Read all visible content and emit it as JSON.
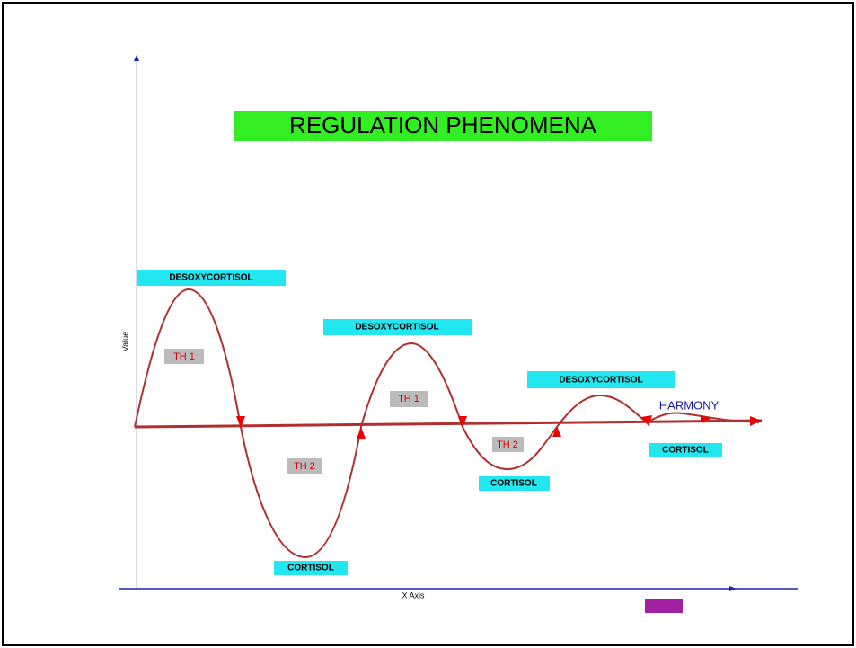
{
  "title": "REGULATION PHENOMENA",
  "peaks": [
    "DESOXYCORTISOL",
    "DESOXYCORTISOL",
    "DESOXYCORTISOL"
  ],
  "troughs": [
    "CORTISOL",
    "CORTISOL",
    "CORTISOL"
  ],
  "phases": [
    "TH 1",
    "TH 2",
    "TH 1",
    "TH 2"
  ],
  "end_label": "HARMONY",
  "x_axis_label": "X Axis",
  "y_axis_label": "Value"
}
